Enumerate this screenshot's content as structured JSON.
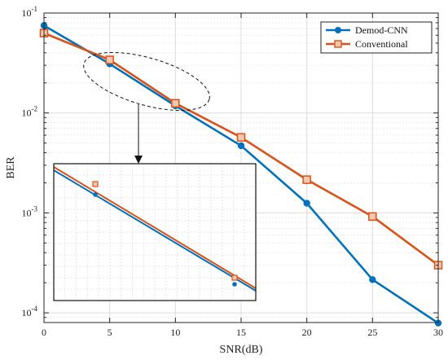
{
  "chart_data": {
    "type": "line",
    "xlabel": "SNR(dB)",
    "ylabel": "BER",
    "x_ticks": [
      0,
      5,
      10,
      15,
      20,
      25,
      30
    ],
    "xlim": [
      0,
      30
    ],
    "ylim": [
      8e-05,
      0.1
    ],
    "y_scale": "log",
    "y_ticks": [
      {
        "value": 0.0001,
        "base": "10",
        "exp": "-4"
      },
      {
        "value": 0.001,
        "base": "10",
        "exp": "-3"
      },
      {
        "value": 0.01,
        "base": "10",
        "exp": "-2"
      },
      {
        "value": 0.1,
        "base": "10",
        "exp": "-1"
      }
    ],
    "grid": true,
    "legend_position": "top-right",
    "x": [
      0,
      5,
      10,
      15,
      20,
      25,
      30
    ],
    "series": [
      {
        "name": "Demod-CNN",
        "color": "#0072BD",
        "marker": "circle",
        "values": [
          0.075,
          0.031,
          0.0118,
          0.0047,
          0.00125,
          0.000215,
          7.9e-05
        ]
      },
      {
        "name": "Conventional",
        "color": "#D95319",
        "marker": "square",
        "values": [
          0.063,
          0.034,
          0.0125,
          0.0057,
          0.00215,
          0.00092,
          0.0003
        ]
      }
    ],
    "annotation": {
      "type": "zoom-inset",
      "shape": "dashed-ellipse",
      "region_x": [
        2,
        13
      ]
    }
  }
}
